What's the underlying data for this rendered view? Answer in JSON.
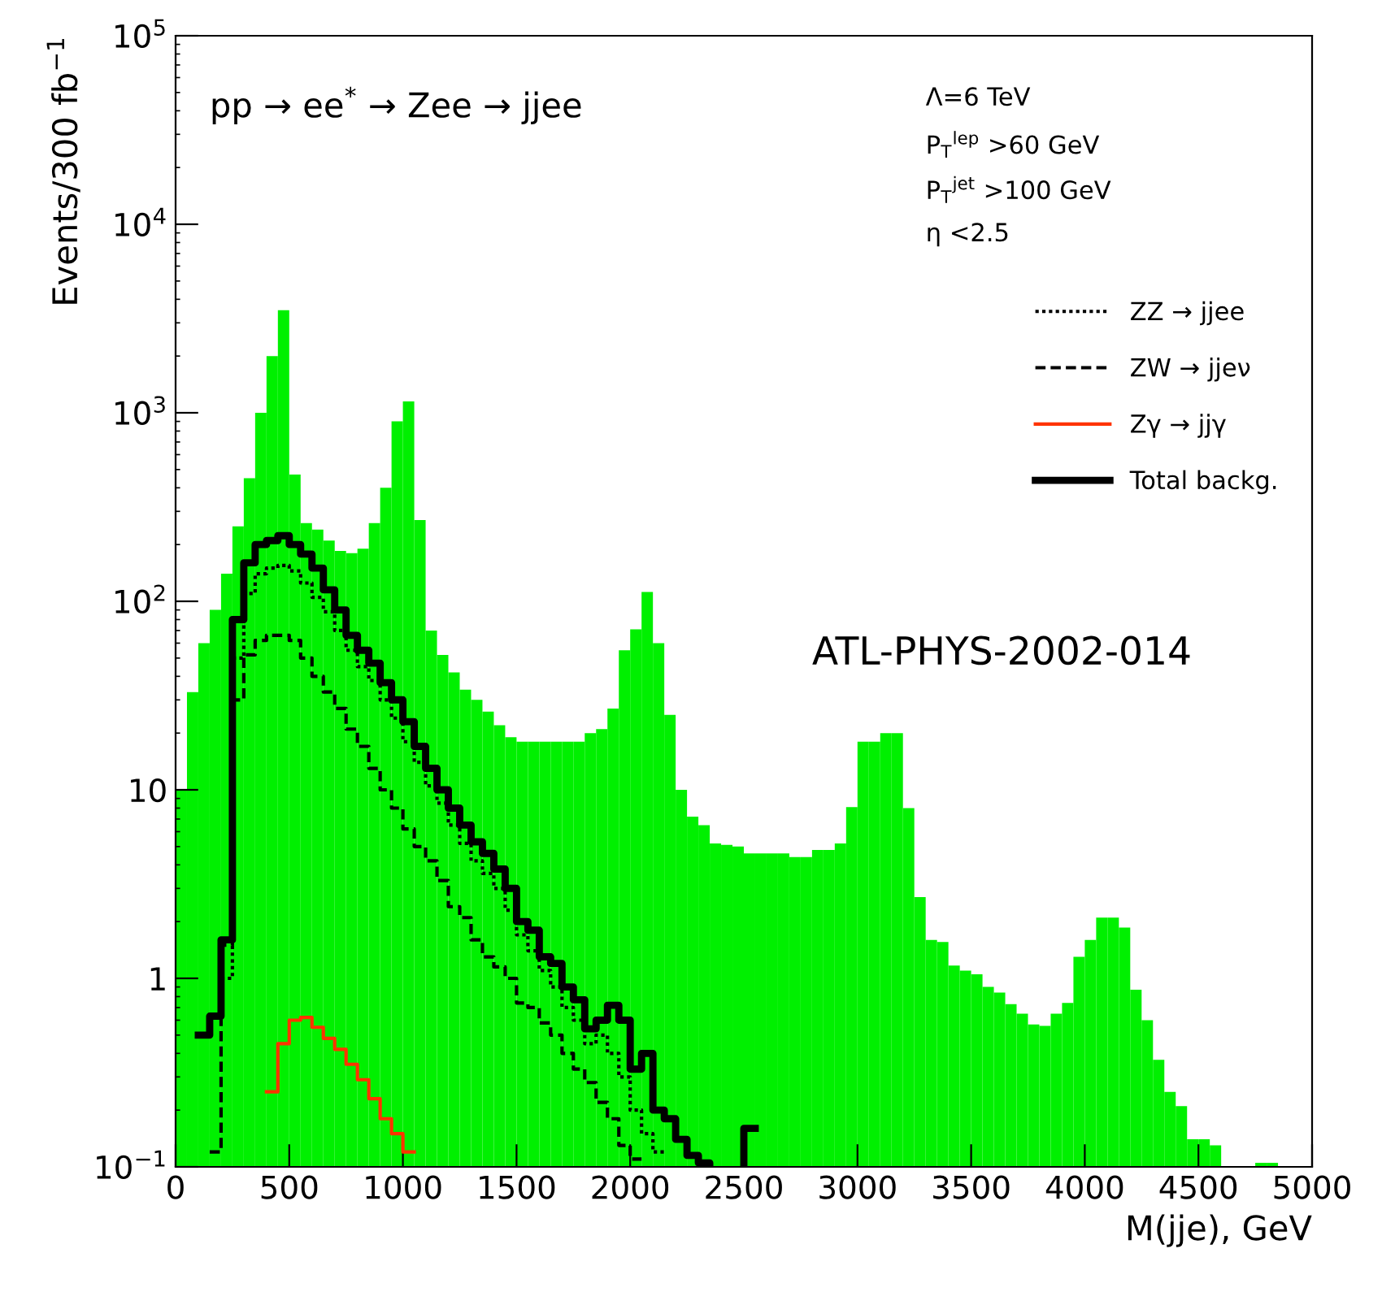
{
  "chart_data": {
    "type": "histogram",
    "xlabel": "M(jje), GeV",
    "ylabel": "Events/300 fb$^{−1}$",
    "annotations": [
      "pp → ee$^{*}$ → Zee → jjee",
      "Λ=6 TeV",
      "P$_{T}$$^{lep}$ >60 GeV",
      "P$_{T}$$^{jet}$ >100 GeV",
      "η <2.5",
      "ATL-PHYS-2002-014"
    ],
    "bins": [
      0,
      50,
      100,
      150,
      200,
      250,
      300,
      350,
      400,
      450,
      500,
      550,
      600,
      650,
      700,
      750,
      800,
      850,
      900,
      950,
      1000,
      1050,
      1100,
      1150,
      1200,
      1250,
      1300,
      1350,
      1400,
      1450,
      1500,
      1550,
      1600,
      1650,
      1700,
      1750,
      1800,
      1850,
      1900,
      1950,
      2000,
      2050,
      2100,
      2150,
      2200,
      2250,
      2300,
      2350,
      2400,
      2450,
      2500,
      2550,
      2600,
      2650,
      2700,
      2750,
      2800,
      2850,
      2900,
      2950,
      3000,
      3050,
      3100,
      3150,
      3200,
      3250,
      3300,
      3350,
      3400,
      3450,
      3500,
      3550,
      3600,
      3650,
      3700,
      3750,
      3800,
      3850,
      3900,
      3950,
      4000,
      4050,
      4100,
      4150,
      4200,
      4250,
      4300,
      4350,
      4400,
      4450,
      4500,
      4550,
      4600,
      4650,
      4700,
      4750,
      4800,
      4850,
      4900,
      4950,
      5000
    ],
    "series": [
      {
        "color": "#00f000",
        "values": [
          10,
          33,
          60,
          90,
          140,
          250,
          450,
          1000,
          2000,
          3500,
          470,
          260,
          240,
          210,
          185,
          180,
          190,
          260,
          400,
          900,
          1150,
          270,
          70,
          52,
          42,
          34,
          30,
          26,
          22,
          19,
          18,
          18,
          18,
          18,
          18,
          18,
          20,
          21,
          27,
          55,
          71,
          112,
          60,
          25,
          10,
          7.2,
          6.5,
          5.2,
          5.1,
          5,
          4.6,
          4.6,
          4.6,
          4.6,
          4.4,
          4.4,
          4.8,
          4.8,
          5.2,
          8.1,
          18,
          18,
          20,
          20,
          8,
          2.7,
          1.6,
          1.56,
          1.17,
          1.1,
          1.05,
          0.9,
          0.84,
          0.73,
          0.65,
          0.57,
          0.56,
          0.65,
          0.74,
          1.3,
          1.6,
          2.1,
          2.1,
          1.86,
          0.87,
          0.6,
          0.37,
          0.25,
          0.21,
          0.14,
          0.14,
          0.13,
          null,
          null,
          null,
          0.105,
          0.105,
          null,
          null,
          null
        ]
      },
      {
        "type": "step",
        "name": "ZZ → jjee",
        "color": "#000000",
        "line_style": "dotted",
        "x": [
          225,
          275,
          325,
          375,
          425,
          475,
          525,
          575,
          625,
          675,
          725,
          775,
          825,
          875,
          925,
          975,
          1025,
          1075,
          1125,
          1175,
          1225,
          1275,
          1325,
          1375,
          1425,
          1475,
          1525,
          1575,
          1625,
          1675,
          1725,
          1775,
          1825,
          1875,
          1925,
          1975,
          2025,
          2075,
          2125
        ],
        "values": [
          1.0,
          50,
          110,
          140,
          150,
          155,
          145,
          125,
          105,
          88,
          70,
          55,
          45,
          38,
          30,
          24,
          18,
          14,
          10.5,
          8.5,
          6.5,
          5.2,
          4.2,
          3.6,
          3,
          2.3,
          1.7,
          1.4,
          1.1,
          0.9,
          0.7,
          0.6,
          0.45,
          0.5,
          0.4,
          0.3,
          0.2,
          0.15,
          0.12
        ]
      },
      {
        "type": "step",
        "name": "ZW → jjeν",
        "color": "#000000",
        "line_style": "dashed",
        "x": [
          175,
          225,
          275,
          325,
          375,
          425,
          475,
          525,
          575,
          625,
          675,
          725,
          775,
          825,
          875,
          925,
          975,
          1025,
          1075,
          1125,
          1175,
          1225,
          1275,
          1325,
          1375,
          1425,
          1475,
          1525,
          1575,
          1625,
          1675,
          1725,
          1775,
          1825,
          1875,
          1925,
          1975,
          2025
        ],
        "values": [
          0.12,
          1.5,
          30,
          52,
          62,
          66,
          66,
          62,
          50,
          40,
          33,
          27,
          21,
          17,
          13,
          10,
          8,
          6.2,
          5,
          4.2,
          3.3,
          2.4,
          2.1,
          1.6,
          1.3,
          1.15,
          1.0,
          0.74,
          0.7,
          0.58,
          0.5,
          0.4,
          0.33,
          0.28,
          0.22,
          0.18,
          0.13,
          0.11
        ]
      },
      {
        "type": "step",
        "name": "Zγ → jjγ",
        "color": "#ff3300",
        "line_style": "solid",
        "x": [
          425,
          475,
          525,
          575,
          625,
          675,
          725,
          775,
          825,
          875,
          925,
          975,
          1025
        ],
        "values": [
          0.25,
          0.45,
          0.6,
          0.62,
          0.55,
          0.48,
          0.42,
          0.35,
          0.29,
          0.23,
          0.18,
          0.15,
          0.12
        ]
      },
      {
        "type": "step",
        "name": "Total backg.",
        "color": "#000000",
        "line_style": "solid",
        "x": [
          125,
          175,
          225,
          275,
          325,
          375,
          425,
          475,
          525,
          575,
          625,
          675,
          725,
          775,
          825,
          875,
          925,
          975,
          1025,
          1075,
          1125,
          1175,
          1225,
          1275,
          1325,
          1375,
          1425,
          1475,
          1525,
          1575,
          1625,
          1675,
          1725,
          1775,
          1825,
          1875,
          1925,
          1975,
          2025,
          2075,
          2125,
          2175,
          2225,
          2275,
          2325,
          2375,
          2425,
          2475,
          2525
        ],
        "values": [
          0.5,
          0.63,
          1.6,
          80,
          160,
          200,
          210,
          223,
          200,
          178,
          150,
          115,
          90,
          66,
          55,
          47,
          37,
          30,
          23,
          17,
          13,
          10,
          8,
          6.5,
          5.3,
          4.6,
          3.8,
          3.0,
          2.0,
          1.8,
          1.3,
          1.2,
          0.9,
          0.77,
          0.54,
          0.6,
          0.72,
          0.6,
          0.33,
          0.4,
          0.2,
          0.18,
          0.14,
          0.115,
          0.105,
          null,
          null,
          null,
          0.16
        ]
      }
    ],
    "log": "y",
    "xlim": [
      0,
      5000
    ],
    "xticks": [
      0,
      500,
      1000,
      1500,
      2000,
      2500,
      3000,
      3500,
      4000,
      4500,
      5000
    ],
    "ylim": [
      0.1,
      100000
    ],
    "yticks": [
      {
        "value": 0.1,
        "label": "10$^{−1}$"
      },
      1,
      10,
      {
        "value": 100,
        "label": "10$^{2}$"
      },
      {
        "value": 1000,
        "label": "10$^{3}$"
      },
      {
        "value": 10000,
        "label": "10$^{4}$"
      },
      {
        "value": 100000,
        "label": "10$^{5}$"
      }
    ],
    "grid": false,
    "legend": "right"
  }
}
